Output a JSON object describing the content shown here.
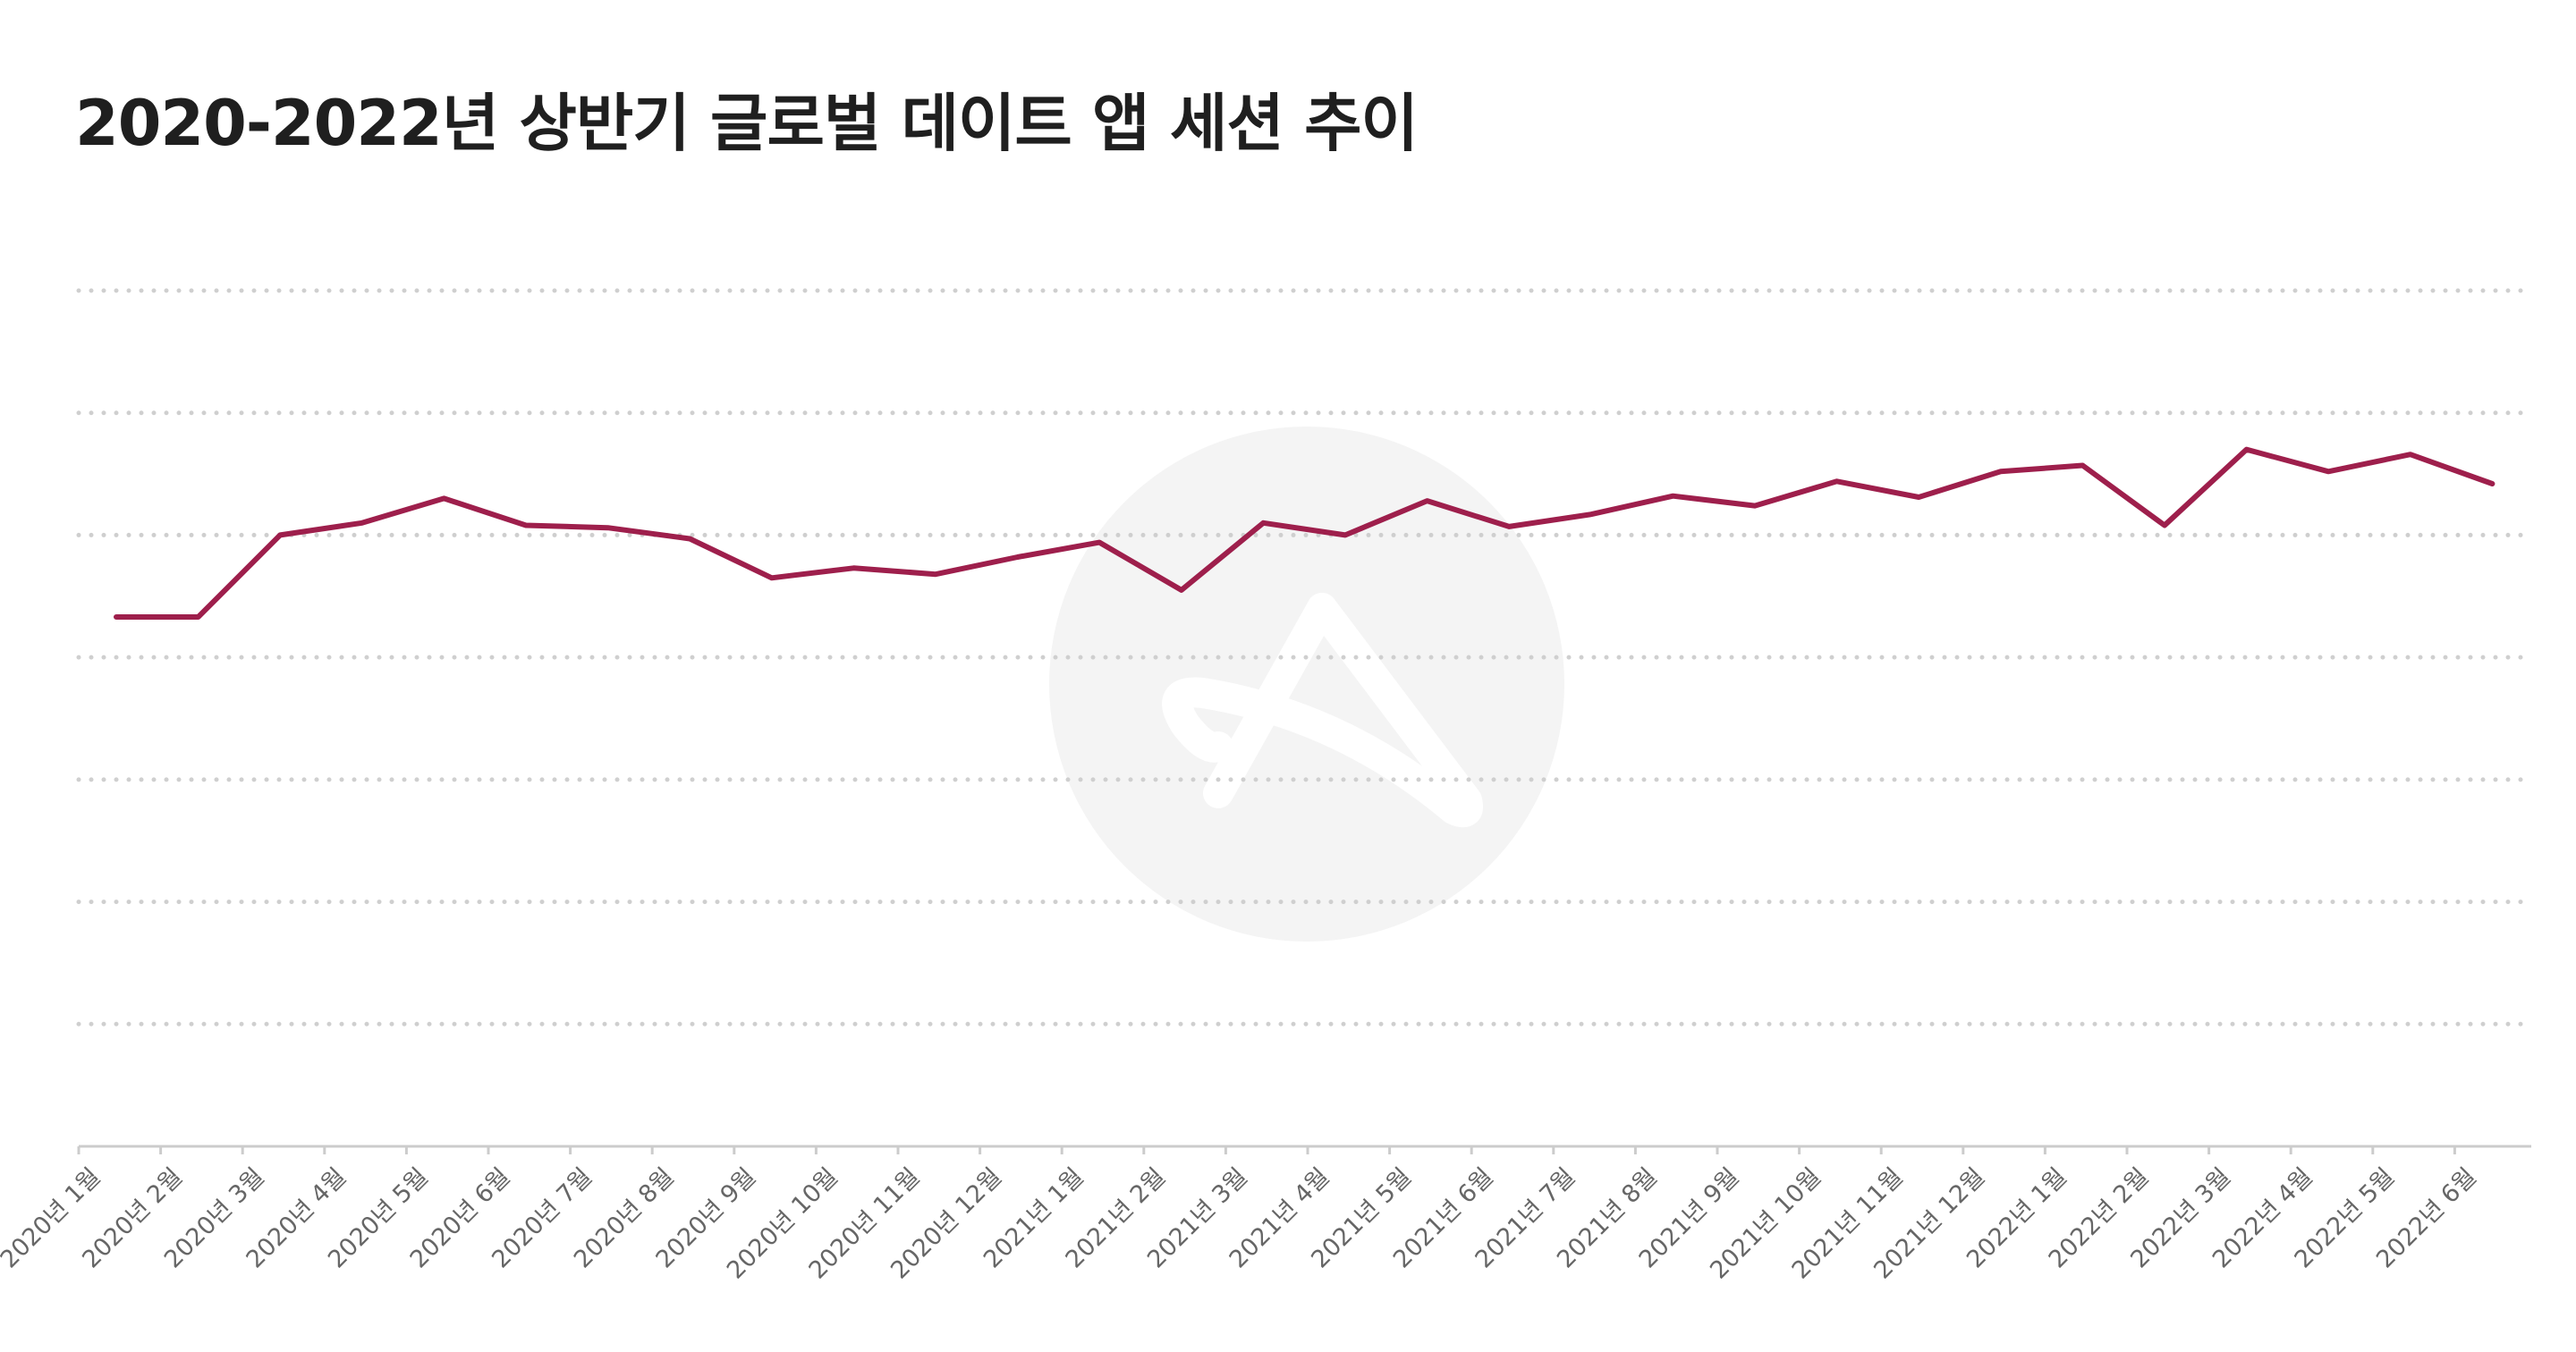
{
  "chart_data": {
    "type": "line",
    "title": "2020-2022년 상반기 글로벌 데이트 앱 세션 추이",
    "xlabel": "",
    "ylabel": "",
    "categories": [
      "2020년 1월",
      "2020년 2월",
      "2020년 3월",
      "2020년 4월",
      "2020년 5월",
      "2020년 6월",
      "2020년 7월",
      "2020년 8월",
      "2020년 9월",
      "2020년 10월",
      "2020년 11월",
      "2020년 12월",
      "2021년 1월",
      "2021년 2월",
      "2021년 3월",
      "2021년 4월",
      "2021년 5월",
      "2021년 6월",
      "2021년 7월",
      "2021년 8월",
      "2021년 9월",
      "2021년 10월",
      "2021년 11월",
      "2021년 12월",
      "2022년 1월",
      "2022년 2월",
      "2022년 3월",
      "2022년 4월",
      "2022년 5월",
      "2022년 6월"
    ],
    "ylim": [
      0,
      7
    ],
    "gridlines": [
      1,
      2,
      3,
      4,
      5,
      6,
      7
    ],
    "grid": true,
    "series": [
      {
        "name": "세션",
        "color": "#9e1f4c",
        "values": [
          4.33,
          4.33,
          5.0,
          5.1,
          5.3,
          5.08,
          5.06,
          4.97,
          4.65,
          4.73,
          4.68,
          4.82,
          4.94,
          4.55,
          5.1,
          5.0,
          5.28,
          5.07,
          5.17,
          5.32,
          5.24,
          5.44,
          5.31,
          5.52,
          5.57,
          5.08,
          5.7,
          5.52,
          5.66,
          5.42
        ]
      }
    ]
  },
  "colors": {
    "line": "#9e1f4c",
    "grid": "#cfcfcf",
    "watermark": "#f4f4f4"
  },
  "watermark": {
    "icon": "brand-logo-watermark-icon"
  }
}
